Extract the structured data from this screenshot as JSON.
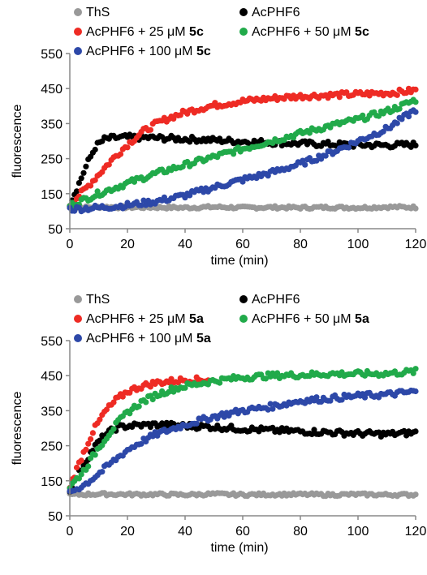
{
  "chart_data": [
    {
      "type": "scatter",
      "panel": "top",
      "xlabel": "time (min)",
      "ylabel": "fluorescence",
      "xlim": [
        0,
        120
      ],
      "ylim": [
        50,
        550
      ],
      "xticks": [
        0,
        20,
        40,
        60,
        80,
        100,
        120
      ],
      "yticks": [
        50,
        150,
        250,
        350,
        450,
        550
      ],
      "grid": false,
      "legend_position": "top",
      "legend": [
        {
          "prefix": "ThS",
          "compound": "",
          "color": "#999999"
        },
        {
          "prefix": "AcPHF6",
          "compound": "",
          "color": "#000000"
        },
        {
          "prefix": "AcPHF6 + 25 μM ",
          "compound": "5c",
          "color": "#ee2b24"
        },
        {
          "prefix": "AcPHF6 + 50 μM ",
          "compound": "5c",
          "color": "#21aa4a"
        },
        {
          "prefix": "AcPHF6 + 100 μM ",
          "compound": "5c",
          "color": "#2d48a8"
        }
      ],
      "series": [
        {
          "name": "ThS",
          "color": "#999999",
          "points": [
            [
              0,
              110
            ],
            [
              10,
              112
            ],
            [
              20,
              111
            ],
            [
              30,
              111
            ],
            [
              40,
              110
            ],
            [
              50,
              112
            ],
            [
              60,
              110
            ],
            [
              70,
              111
            ],
            [
              80,
              110
            ],
            [
              90,
              111
            ],
            [
              100,
              110
            ],
            [
              110,
              112
            ],
            [
              120,
              111
            ]
          ]
        },
        {
          "name": "AcPHF6",
          "color": "#000000",
          "points": [
            [
              0,
              122
            ],
            [
              3,
              175
            ],
            [
              6,
              235
            ],
            [
              9,
              285
            ],
            [
              12,
              305
            ],
            [
              15,
              309
            ],
            [
              20,
              311
            ],
            [
              30,
              309
            ],
            [
              40,
              306
            ],
            [
              50,
              303
            ],
            [
              60,
              299
            ],
            [
              70,
              296
            ],
            [
              80,
              293
            ],
            [
              90,
              291
            ],
            [
              100,
              289
            ],
            [
              110,
              288
            ],
            [
              120,
              290
            ]
          ]
        },
        {
          "name": "AcPHF6 + 25 μM 5c",
          "color": "#ee2b24",
          "points": [
            [
              0,
              118
            ],
            [
              5,
              160
            ],
            [
              10,
              205
            ],
            [
              15,
              250
            ],
            [
              20,
              290
            ],
            [
              25,
              325
            ],
            [
              30,
              350
            ],
            [
              35,
              368
            ],
            [
              40,
              382
            ],
            [
              45,
              393
            ],
            [
              50,
              402
            ],
            [
              60,
              414
            ],
            [
              70,
              422
            ],
            [
              80,
              428
            ],
            [
              90,
              431
            ],
            [
              100,
              434
            ],
            [
              110,
              437
            ],
            [
              115,
              440
            ],
            [
              120,
              445
            ]
          ]
        },
        {
          "name": "AcPHF6 + 50 μM 5c",
          "color": "#21aa4a",
          "points": [
            [
              0,
              116
            ],
            [
              10,
              150
            ],
            [
              20,
              180
            ],
            [
              30,
              208
            ],
            [
              40,
              232
            ],
            [
              50,
              255
            ],
            [
              60,
              278
            ],
            [
              70,
              300
            ],
            [
              80,
              322
            ],
            [
              90,
              343
            ],
            [
              100,
              362
            ],
            [
              110,
              385
            ],
            [
              115,
              400
            ],
            [
              120,
              418
            ]
          ]
        },
        {
          "name": "AcPHF6 + 100 μM 5c",
          "color": "#2d48a8",
          "points": [
            [
              0,
              106
            ],
            [
              10,
              110
            ],
            [
              20,
              117
            ],
            [
              30,
              128
            ],
            [
              40,
              145
            ],
            [
              50,
              168
            ],
            [
              60,
              190
            ],
            [
              70,
              210
            ],
            [
              80,
              235
            ],
            [
              90,
              265
            ],
            [
              100,
              300
            ],
            [
              105,
              318
            ],
            [
              110,
              335
            ],
            [
              115,
              362
            ],
            [
              120,
              390
            ]
          ]
        }
      ]
    },
    {
      "type": "scatter",
      "panel": "bottom",
      "xlabel": "time (min)",
      "ylabel": "fluorescence",
      "xlim": [
        0,
        120
      ],
      "ylim": [
        50,
        550
      ],
      "xticks": [
        0,
        20,
        40,
        60,
        80,
        100,
        120
      ],
      "yticks": [
        50,
        150,
        250,
        350,
        450,
        550
      ],
      "grid": false,
      "legend_position": "top",
      "legend": [
        {
          "prefix": "ThS",
          "compound": "",
          "color": "#999999"
        },
        {
          "prefix": "AcPHF6",
          "compound": "",
          "color": "#000000"
        },
        {
          "prefix": "AcPHF6 + 25 μM ",
          "compound": "5a",
          "color": "#ee2b24"
        },
        {
          "prefix": "AcPHF6 + 50 μM ",
          "compound": "5a",
          "color": "#21aa4a"
        },
        {
          "prefix": "AcPHF6 + 100 μM ",
          "compound": "5a",
          "color": "#2d48a8"
        }
      ],
      "series": [
        {
          "name": "ThS",
          "color": "#999999",
          "points": [
            [
              0,
              110
            ],
            [
              10,
              112
            ],
            [
              20,
              111
            ],
            [
              30,
              111
            ],
            [
              40,
              110
            ],
            [
              50,
              112
            ],
            [
              60,
              110
            ],
            [
              70,
              111
            ],
            [
              80,
              111
            ],
            [
              90,
              110
            ],
            [
              100,
              111
            ],
            [
              110,
              110
            ],
            [
              120,
              110
            ]
          ]
        },
        {
          "name": "AcPHF6",
          "color": "#000000",
          "points": [
            [
              0,
              125
            ],
            [
              4,
              185
            ],
            [
              8,
              240
            ],
            [
              12,
              280
            ],
            [
              16,
              300
            ],
            [
              20,
              307
            ],
            [
              30,
              310
            ],
            [
              40,
              307
            ],
            [
              50,
              303
            ],
            [
              60,
              298
            ],
            [
              70,
              294
            ],
            [
              80,
              291
            ],
            [
              90,
              288
            ],
            [
              100,
              285
            ],
            [
              110,
              283
            ],
            [
              120,
              287
            ]
          ]
        },
        {
          "name": "AcPHF6 + 25 μM 5a",
          "color": "#ee2b24",
          "points": [
            [
              0,
              135
            ],
            [
              4,
              215
            ],
            [
              8,
              290
            ],
            [
              12,
              345
            ],
            [
              16,
              380
            ],
            [
              20,
              405
            ],
            [
              25,
              420
            ],
            [
              30,
              430
            ],
            [
              40,
              438
            ],
            [
              48,
              438
            ]
          ]
        },
        {
          "name": "AcPHF6 + 50 μM 5a",
          "color": "#21aa4a",
          "points": [
            [
              0,
              132
            ],
            [
              5,
              180
            ],
            [
              10,
              245
            ],
            [
              15,
              300
            ],
            [
              20,
              345
            ],
            [
              25,
              375
            ],
            [
              30,
              395
            ],
            [
              35,
              410
            ],
            [
              40,
              420
            ],
            [
              50,
              435
            ],
            [
              60,
              445
            ],
            [
              70,
              450
            ],
            [
              80,
              452
            ],
            [
              90,
              455
            ],
            [
              100,
              455
            ],
            [
              110,
              456
            ],
            [
              120,
              462
            ]
          ]
        },
        {
          "name": "AcPHF6 + 100 μM 5a",
          "color": "#2d48a8",
          "points": [
            [
              0,
              118
            ],
            [
              5,
              138
            ],
            [
              10,
              170
            ],
            [
              15,
              205
            ],
            [
              20,
              238
            ],
            [
              25,
              262
            ],
            [
              30,
              283
            ],
            [
              40,
              310
            ],
            [
              50,
              333
            ],
            [
              60,
              350
            ],
            [
              70,
              362
            ],
            [
              80,
              378
            ],
            [
              90,
              385
            ],
            [
              100,
              392
            ],
            [
              110,
              396
            ],
            [
              120,
              405
            ]
          ]
        }
      ]
    }
  ]
}
